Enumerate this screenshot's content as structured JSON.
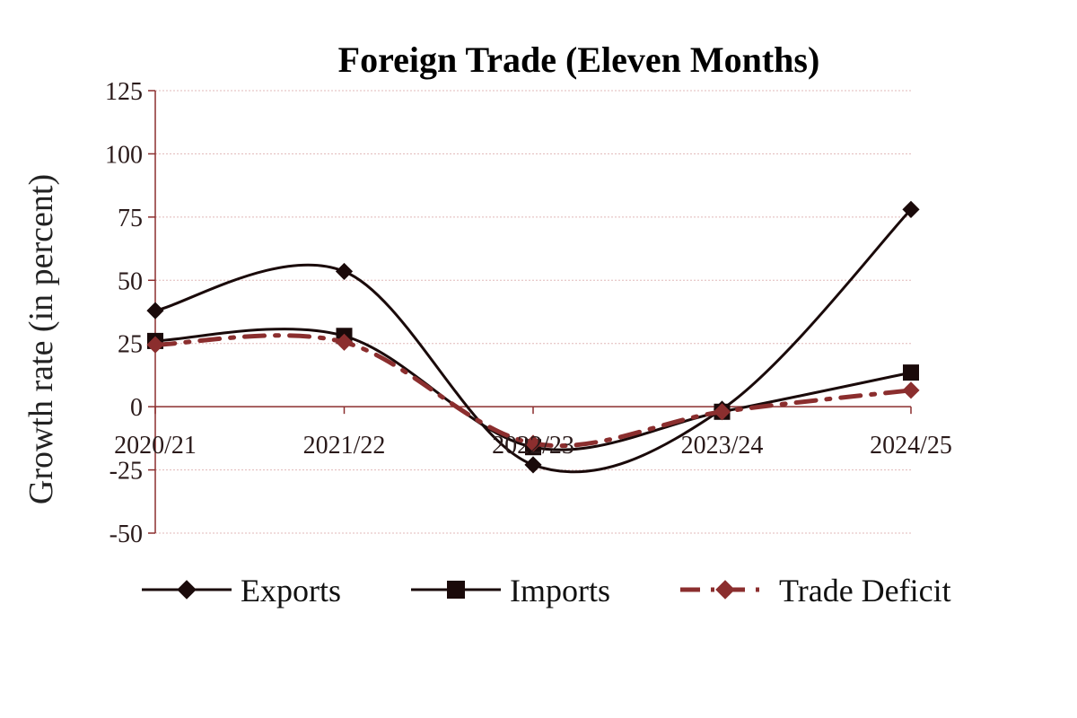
{
  "chart_data": {
    "type": "line",
    "title": "Foreign Trade (Eleven Months)",
    "xlabel": "",
    "ylabel": "Growth rate (in percent)",
    "categories": [
      "2020/21",
      "2021/22",
      "2022/23",
      "2023/24",
      "2024/25"
    ],
    "ylim": [
      -50,
      125
    ],
    "yticks": [
      125,
      100,
      75,
      50,
      25,
      0,
      -25,
      -50
    ],
    "grid": true,
    "legend_position": "bottom",
    "series": [
      {
        "name": "Exports",
        "values": [
          38,
          53.5,
          -23,
          -1,
          78
        ],
        "color": "#1a0a0a",
        "marker": "diamond",
        "dash": "solid"
      },
      {
        "name": "Imports",
        "values": [
          26,
          28,
          -16,
          -2,
          13.5
        ],
        "color": "#1a0a0a",
        "marker": "square",
        "dash": "solid"
      },
      {
        "name": "Trade Deficit",
        "values": [
          24.5,
          25.5,
          -14.5,
          -2,
          6.5
        ],
        "color": "#8b2e2e",
        "marker": "diamond",
        "dash": "dashdot"
      }
    ],
    "colors": {
      "axis": "#8b2e2e",
      "grid": "#e0b8b8",
      "text": "#2a1a1a"
    }
  }
}
